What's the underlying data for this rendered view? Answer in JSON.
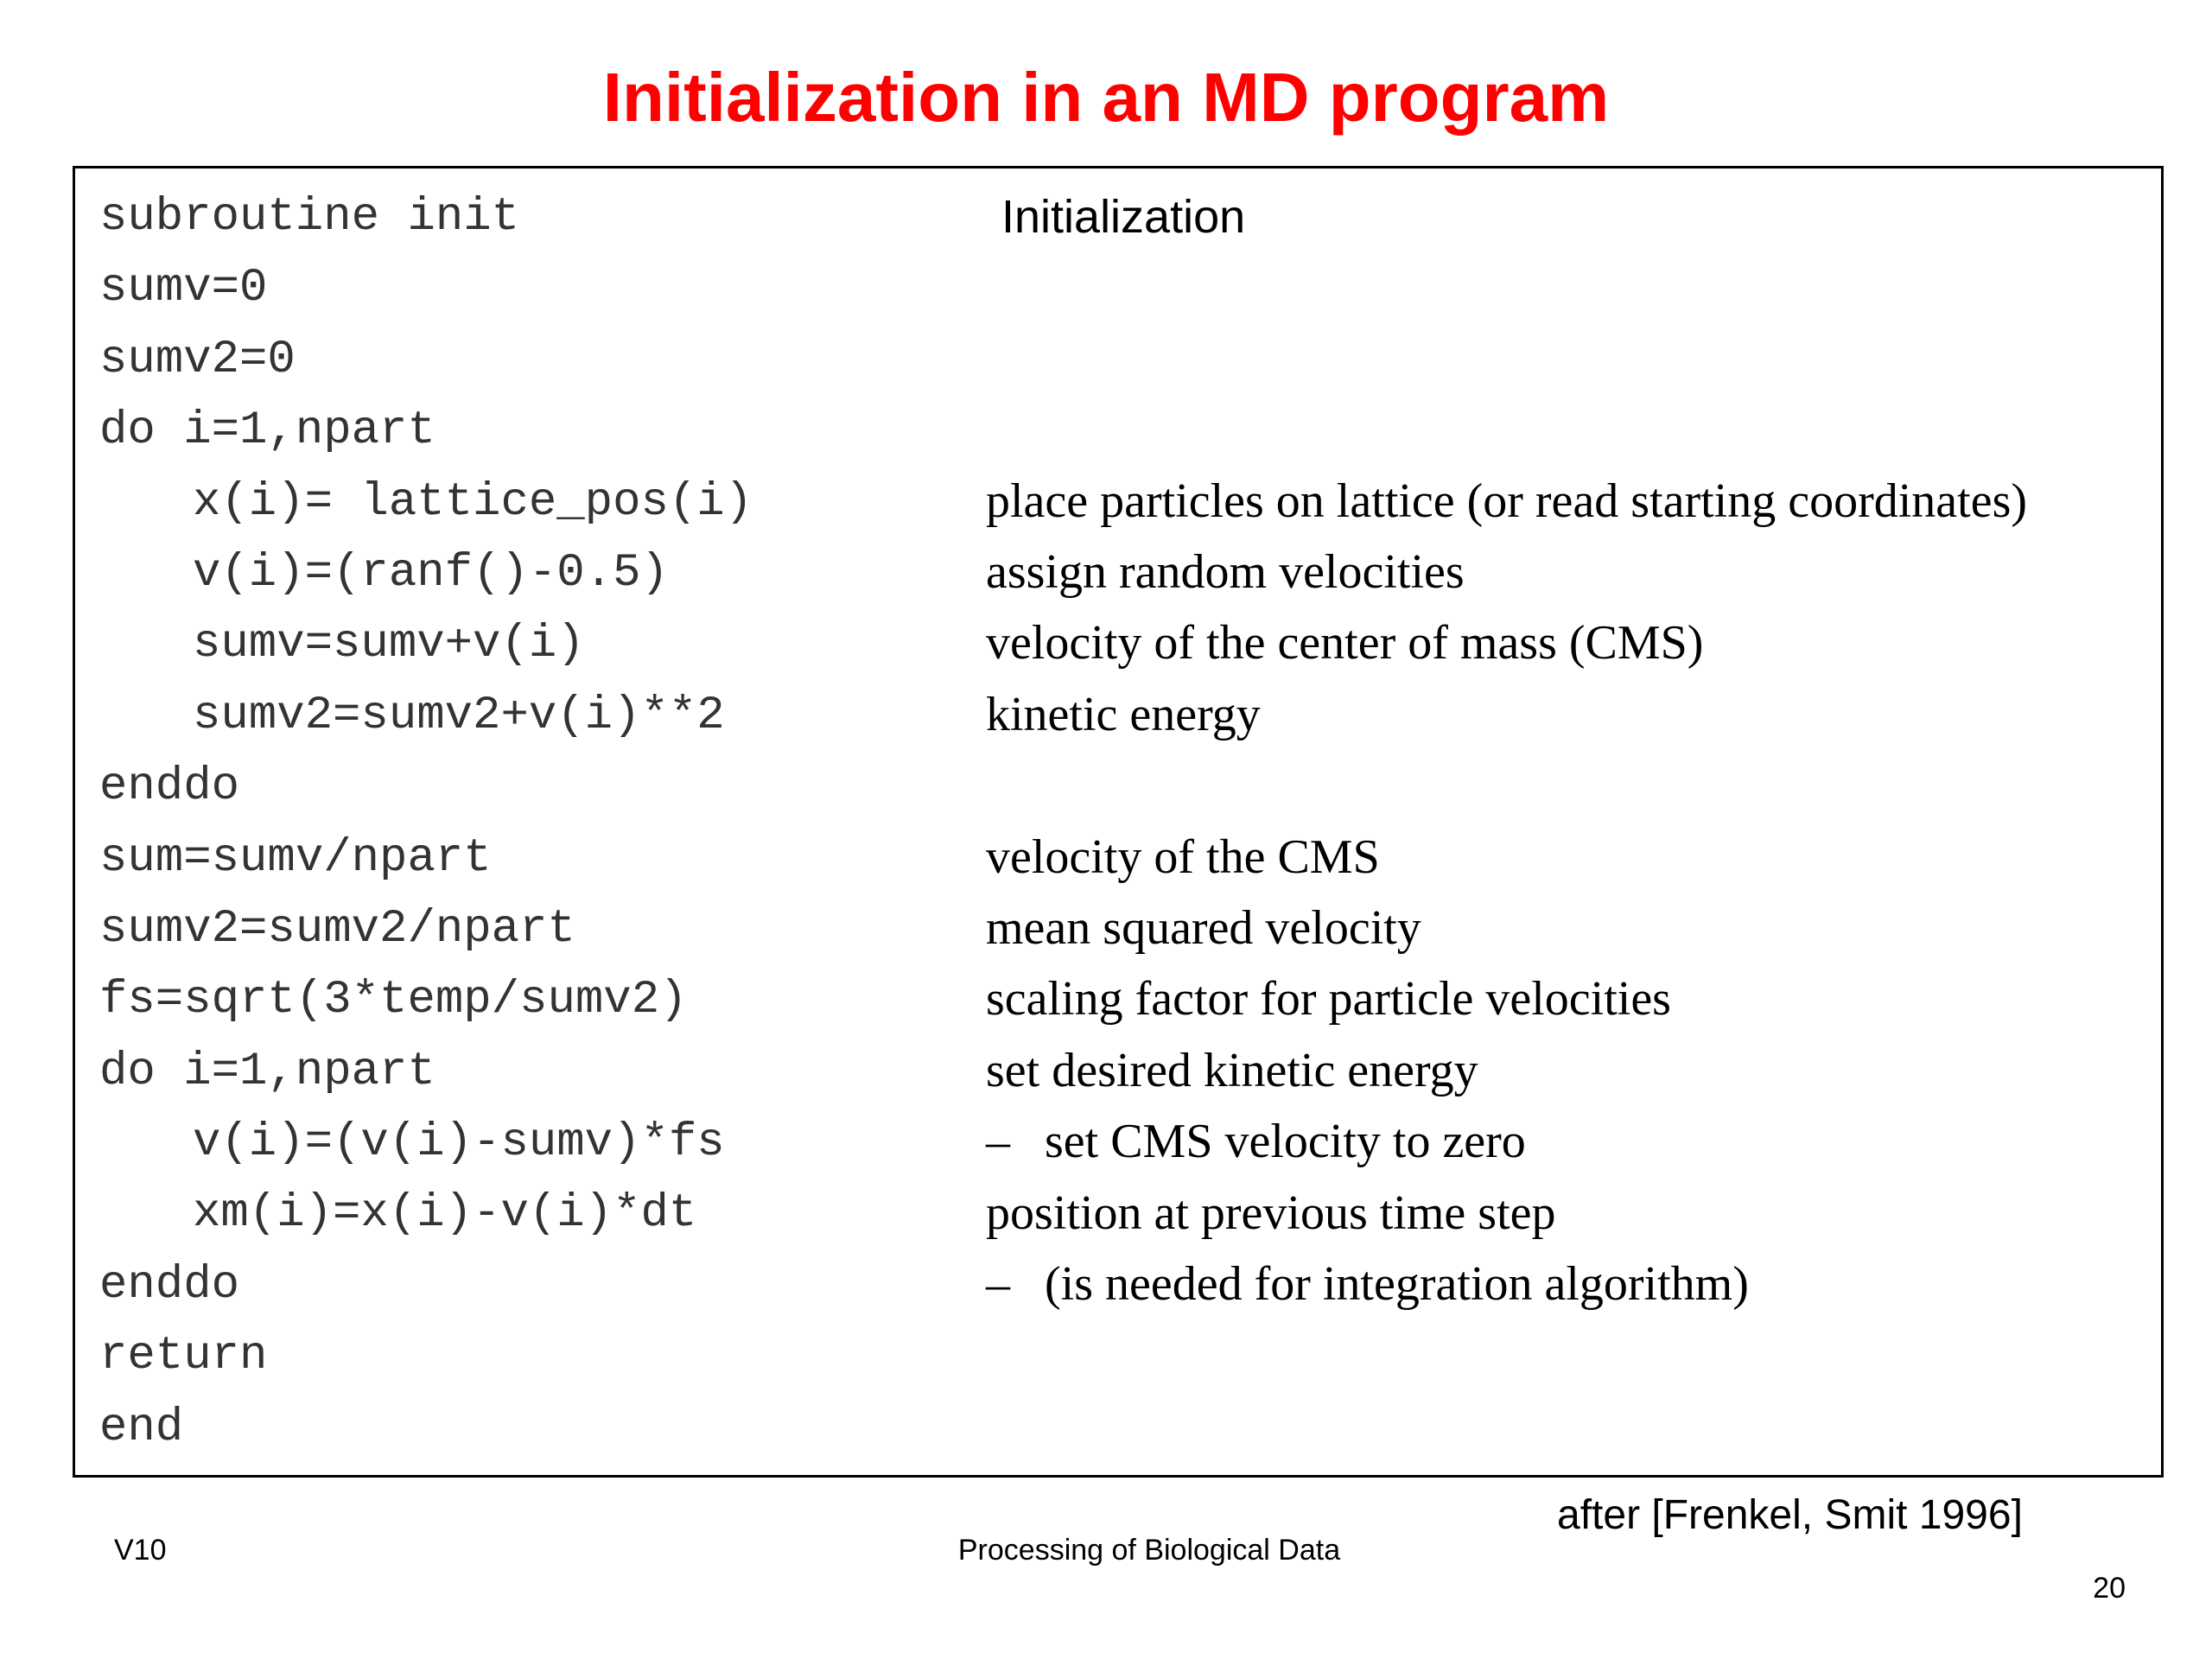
{
  "slide": {
    "title": "Initialization in an MD program",
    "box_heading": "Initialization",
    "credit": "after [Frenkel, Smit 1996]"
  },
  "code": [
    {
      "text": "subroutine init",
      "indent": false
    },
    {
      "text": "sumv=0",
      "indent": false
    },
    {
      "text": "sumv2=0",
      "indent": false
    },
    {
      "text": "do i=1,npart",
      "indent": false
    },
    {
      "text": "x(i)= lattice_pos(i)",
      "indent": true
    },
    {
      "text": "v(i)=(ranf()-0.5)",
      "indent": true
    },
    {
      "text": "sumv=sumv+v(i)",
      "indent": true
    },
    {
      "text": "sumv2=sumv2+v(i)**2",
      "indent": true
    },
    {
      "text": "enddo",
      "indent": false
    },
    {
      "text": "sum=sumv/npart",
      "indent": false
    },
    {
      "text": "sumv2=sumv2/npart",
      "indent": false
    },
    {
      "text": "fs=sqrt(3*temp/sumv2)",
      "indent": false
    },
    {
      "text": "do i=1,npart",
      "indent": false
    },
    {
      "text": "v(i)=(v(i)-sumv)*fs",
      "indent": true
    },
    {
      "text": "xm(i)=x(i)-v(i)*dt",
      "indent": true
    },
    {
      "text": "enddo",
      "indent": false
    },
    {
      "text": "return",
      "indent": false
    },
    {
      "text": "end",
      "indent": false
    }
  ],
  "notes": [
    {
      "line": 4,
      "dash": "",
      "text": "place particles on lattice (or read starting coordinates)"
    },
    {
      "line": 5,
      "dash": "",
      "text": "assign random velocities"
    },
    {
      "line": 6,
      "dash": "",
      "text": "velocity of the center of mass (CMS)"
    },
    {
      "line": 7,
      "dash": "",
      "text": "kinetic energy"
    },
    {
      "line": 9,
      "dash": "",
      "text": "velocity of the CMS"
    },
    {
      "line": 10,
      "dash": "",
      "text": "mean squared velocity"
    },
    {
      "line": 11,
      "dash": "",
      "text": "scaling factor for particle velocities"
    },
    {
      "line": 12,
      "dash": "",
      "text": "set desired kinetic energy"
    },
    {
      "line": 13,
      "dash": "–",
      "text": "set CMS velocity to zero"
    },
    {
      "line": 14,
      "dash": "",
      "text": "position at previous time step"
    },
    {
      "line": 15,
      "dash": "–",
      "text": "(is needed for integration algorithm)"
    }
  ],
  "footer": {
    "left": "V10",
    "center": "Processing of Biological Data",
    "page_number": "20"
  }
}
